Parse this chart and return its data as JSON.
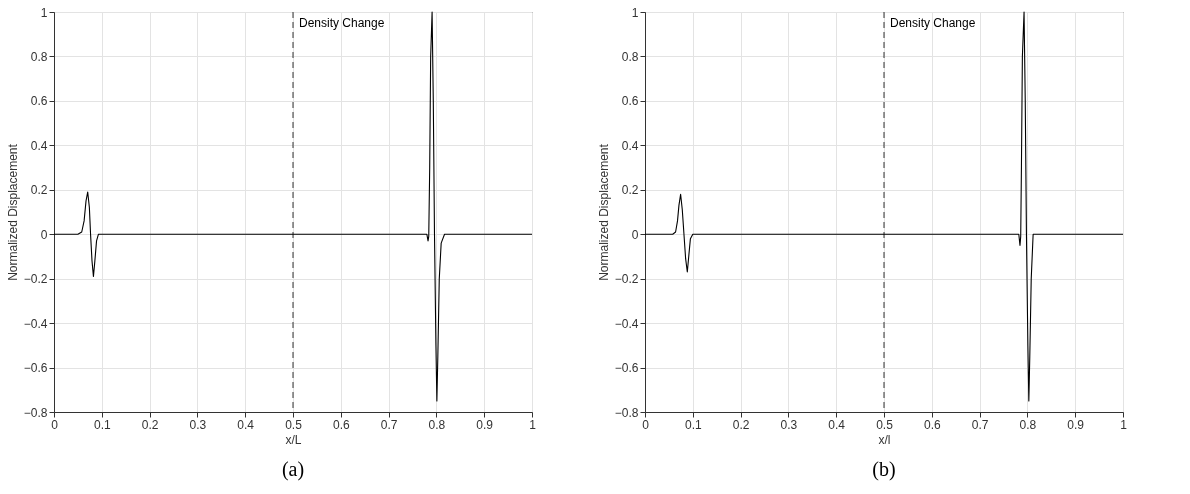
{
  "chart_data": [
    {
      "type": "line",
      "xlabel": "x/L",
      "ylabel": "Normalized Displacement",
      "annotations": [
        "(a)"
      ],
      "xlim": [
        0,
        1
      ],
      "ylim": [
        -0.8,
        1
      ],
      "xticks": [
        0,
        0.1,
        0.2,
        0.3,
        0.4,
        0.5,
        0.6,
        0.7,
        0.8,
        0.9,
        1
      ],
      "yticks": [
        -0.8,
        -0.6,
        -0.4,
        -0.2,
        0,
        0.2,
        0.4,
        0.6,
        0.8,
        1
      ],
      "grid": true,
      "ref_lines": [
        {
          "axis": "x",
          "value": 0.5,
          "label": "Density Change",
          "color": "#000000",
          "line_style": "dashed"
        }
      ],
      "series": [
        {
          "color": "#000000",
          "x": [
            0,
            0.05,
            0.058,
            0.063,
            0.067,
            0.0705,
            0.074,
            0.0765,
            0.0795,
            0.0825,
            0.0855,
            0.089,
            0.093,
            0.1,
            0.78,
            0.7825,
            0.784,
            0.786,
            0.788,
            0.791,
            0.7935,
            0.796,
            0.799,
            0.801,
            0.803,
            0.806,
            0.81,
            0.817,
            1
          ],
          "values": [
            0,
            0,
            0.01,
            0.06,
            0.15,
            0.19,
            0.12,
            0,
            -0.12,
            -0.19,
            -0.12,
            -0.03,
            0,
            0,
            0,
            -0.03,
            -0.01,
            0.3,
            0.8,
            1,
            0.6,
            0,
            -0.5,
            -0.75,
            -0.55,
            -0.2,
            -0.04,
            0,
            0
          ]
        }
      ]
    },
    {
      "type": "line",
      "xlabel": "x/l",
      "ylabel": "Normalized Displacement",
      "annotations": [
        "(b)"
      ],
      "xlim": [
        0,
        1
      ],
      "ylim": [
        -0.8,
        1
      ],
      "xticks": [
        0,
        0.1,
        0.2,
        0.3,
        0.4,
        0.5,
        0.6,
        0.7,
        0.8,
        0.9,
        1
      ],
      "yticks": [
        -0.8,
        -0.6,
        -0.4,
        -0.2,
        0,
        0.2,
        0.4,
        0.6,
        0.8,
        1
      ],
      "grid": true,
      "ref_lines": [
        {
          "axis": "x",
          "value": 0.5,
          "label": "Density Change",
          "color": "#000000",
          "line_style": "dashed"
        }
      ],
      "series": [
        {
          "color": "#000000",
          "x": [
            0,
            0.058,
            0.064,
            0.068,
            0.071,
            0.0745,
            0.078,
            0.0815,
            0.085,
            0.0885,
            0.0915,
            0.095,
            0.1,
            0.782,
            0.7845,
            0.786,
            0.7875,
            0.7895,
            0.793,
            0.7955,
            0.798,
            0.801,
            0.803,
            0.805,
            0.808,
            0.812,
            1
          ],
          "values": [
            0,
            0,
            0.01,
            0.06,
            0.13,
            0.18,
            0.11,
            0,
            -0.11,
            -0.17,
            -0.1,
            -0.02,
            0,
            0,
            -0.05,
            -0.01,
            0.3,
            0.8,
            1,
            0.6,
            0,
            -0.5,
            -0.75,
            -0.55,
            -0.2,
            0,
            0
          ]
        }
      ]
    }
  ]
}
